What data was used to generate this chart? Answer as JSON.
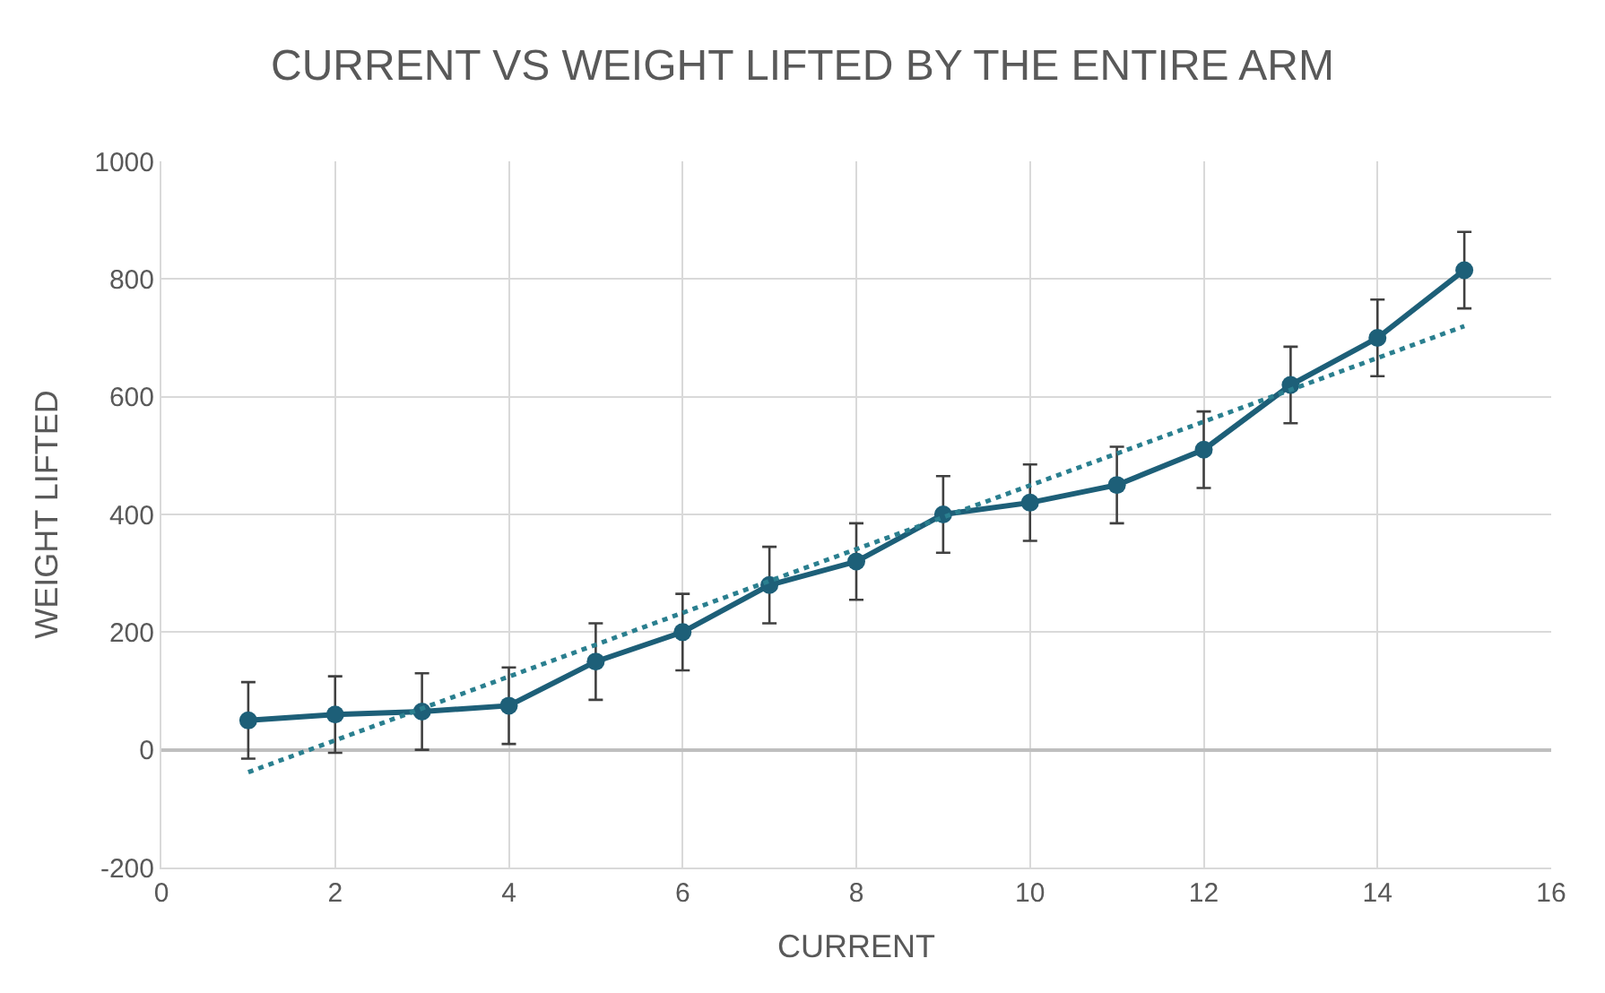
{
  "chart_data": {
    "type": "line",
    "title": "CURRENT VS WEIGHT LIFTED BY THE ENTIRE ARM",
    "xlabel": "CURRENT",
    "ylabel": "WEIGHT LIFTED",
    "x": [
      1,
      2,
      3,
      4,
      5,
      6,
      7,
      8,
      9,
      10,
      11,
      12,
      13,
      14,
      15
    ],
    "series": [
      {
        "color": "#1d5f78",
        "values": [
          50,
          60,
          65,
          75,
          150,
          200,
          280,
          320,
          400,
          420,
          450,
          510,
          620,
          700,
          815
        ],
        "errors": [
          65,
          65,
          65,
          65,
          65,
          65,
          65,
          65,
          65,
          65,
          65,
          65,
          65,
          65,
          65
        ],
        "marker": "circle",
        "line_style": "solid"
      },
      {
        "color": "#2a7f8f",
        "x": [
          1,
          15
        ],
        "values": [
          -38,
          720
        ],
        "marker": "none",
        "line_style": "dotted"
      }
    ],
    "xlim": [
      0,
      16
    ],
    "xticks": [
      0,
      2,
      4,
      6,
      8,
      10,
      12,
      14,
      16
    ],
    "ylim": [
      -200,
      1000
    ],
    "yticks": [
      -200,
      0,
      200,
      400,
      600,
      800,
      1000
    ],
    "grid": true
  }
}
